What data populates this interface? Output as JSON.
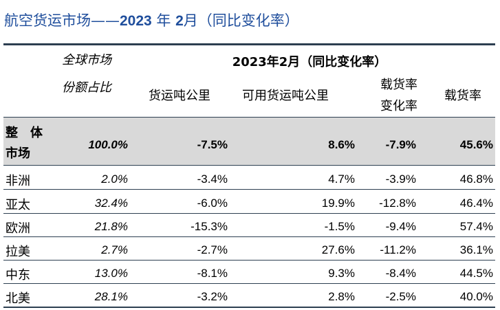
{
  "title": {
    "prefix": "航空货运市场——",
    "year": "2023",
    "nian": " 年 ",
    "month": "2",
    "suffix": "月（同比变化率）"
  },
  "header": {
    "share_line1": "全球市场",
    "share_line2": "份额占比",
    "group": "2023年2月（同比变化率）",
    "col_ftk": "货运吨公里",
    "col_aftk": "可用货运吨公里",
    "col_lf_change_line1": "载货率",
    "col_lf_change_line2": "变化率",
    "col_lf": "载货率"
  },
  "total": {
    "label_line1": "整　体",
    "label_line2": "市场",
    "share": "100.0%",
    "ftk": "-7.5%",
    "aftk": "8.6%",
    "lf_change": "-7.9%",
    "lf": "45.6%"
  },
  "rows": [
    {
      "region": "非洲",
      "share": "2.0%",
      "ftk": "-3.4%",
      "aftk": "4.7%",
      "lf_change": "-3.9%",
      "lf": "46.8%"
    },
    {
      "region": "亚太",
      "share": "32.4%",
      "ftk": "-6.0%",
      "aftk": "19.9%",
      "lf_change": "-12.8%",
      "lf": "46.4%"
    },
    {
      "region": "欧洲",
      "share": "21.8%",
      "ftk": "-15.3%",
      "aftk": "-1.5%",
      "lf_change": "-9.4%",
      "lf": "57.4%"
    },
    {
      "region": "拉美",
      "share": "2.7%",
      "ftk": "-2.7%",
      "aftk": "27.6%",
      "lf_change": "-11.2%",
      "lf": "36.1%"
    },
    {
      "region": "中东",
      "share": "13.0%",
      "ftk": "-8.1%",
      "aftk": "9.3%",
      "lf_change": "-8.4%",
      "lf": "44.5%"
    },
    {
      "region": "北美",
      "share": "28.1%",
      "ftk": "-3.2%",
      "aftk": "2.8%",
      "lf_change": "-2.5%",
      "lf": "40.0%"
    }
  ]
}
